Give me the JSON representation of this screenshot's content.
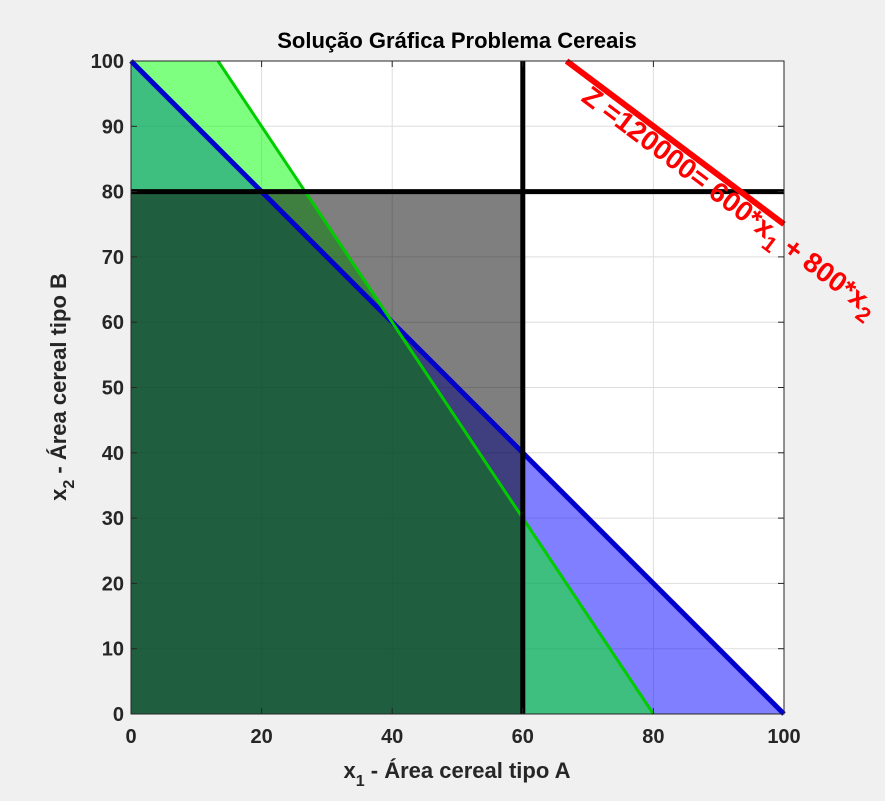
{
  "chart_data": {
    "type": "area",
    "title": "Solução Gráfica Problema Cereais",
    "xlabel": {
      "var": "x",
      "sub": "1",
      "text": " - Área cereal tipo A"
    },
    "ylabel": {
      "var": "x",
      "sub": "2",
      "text": " - Área cereal tipo B"
    },
    "xlim": [
      0,
      100
    ],
    "ylim": [
      0,
      100
    ],
    "xticks": [
      0,
      20,
      40,
      60,
      80,
      100
    ],
    "yticks": [
      0,
      10,
      20,
      30,
      40,
      50,
      60,
      70,
      80,
      90,
      100
    ],
    "xtick_labels": [
      "0",
      "20",
      "40",
      "60",
      "80",
      "100"
    ],
    "ytick_labels": [
      "0",
      "10",
      "20",
      "30",
      "40",
      "50",
      "60",
      "70",
      "80",
      "90",
      "100"
    ],
    "grid": true,
    "regions": [
      {
        "id": "blue-region",
        "fill": "#0000ff",
        "opacity": 0.5,
        "points": [
          [
            0,
            0
          ],
          [
            0,
            100
          ],
          [
            100,
            0
          ]
        ]
      },
      {
        "id": "green-region",
        "fill": "#00ff00",
        "opacity": 0.5,
        "points": [
          [
            0,
            0
          ],
          [
            0,
            100
          ],
          [
            13.33,
            100
          ],
          [
            80,
            0
          ]
        ]
      },
      {
        "id": "black-region",
        "fill": "#000000",
        "opacity": 0.5,
        "points": [
          [
            0,
            0
          ],
          [
            0,
            80
          ],
          [
            60,
            80
          ],
          [
            60,
            0
          ]
        ]
      }
    ],
    "constraint_lines": [
      {
        "id": "blue-constraint-line",
        "color": "#0000cc",
        "width": 5,
        "x": [
          0,
          100
        ],
        "y": [
          100,
          0
        ]
      },
      {
        "id": "green-constraint-line",
        "color": "#00cc00",
        "width": 3,
        "x": [
          13.33,
          80
        ],
        "y": [
          100,
          0
        ]
      },
      {
        "id": "vertical-x1-60-line",
        "color": "#000000",
        "width": 5,
        "x": [
          60,
          60
        ],
        "y": [
          0,
          100
        ]
      },
      {
        "id": "horizontal-x2-80-line",
        "color": "#000000",
        "width": 5,
        "x": [
          0,
          100
        ],
        "y": [
          80,
          80
        ]
      }
    ],
    "objective_line": {
      "color": "#ff0000",
      "width": 6,
      "x": [
        66.7,
        100
      ],
      "y": [
        100,
        75
      ]
    },
    "annotation": {
      "parts": [
        "Z =120000= 600*x",
        "1",
        " + 800*x",
        "2"
      ],
      "color": "#ff0000"
    }
  }
}
